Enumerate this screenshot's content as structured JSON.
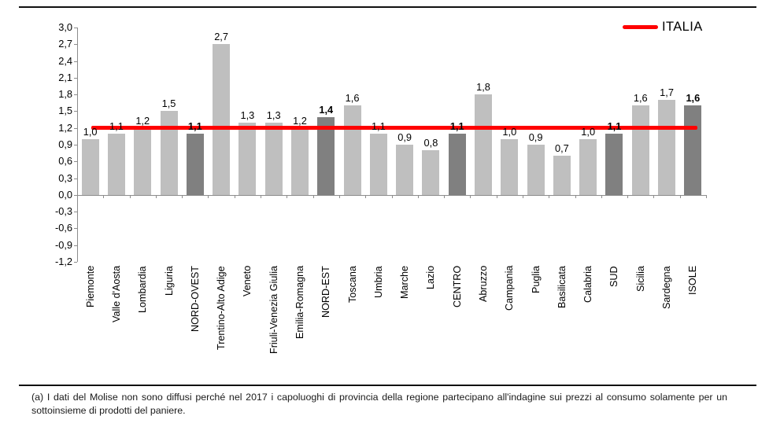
{
  "chart": {
    "legend_label": "ITALIA"
  },
  "footnote": "(a) I dati del Molise non sono diffusi perché nel 2017 i capoluoghi di provincia della regione partecipano all'indagine sui prezzi al consumo solamente per un sottoinsieme di prodotti del paniere.",
  "chart_data": {
    "type": "bar",
    "categories": [
      "Piemonte",
      "Valle d'Aosta",
      "Lombardia",
      "Liguria",
      "NORD-OVEST",
      "Trentino-Alto Adige",
      "Veneto",
      "Friuli-Venezia Giulia",
      "Emilia-Romagna",
      "NORD-EST",
      "Toscana",
      "Umbria",
      "Marche",
      "Lazio",
      "CENTRO",
      "Abruzzo",
      "Campania",
      "Puglia",
      "Basilicata",
      "Calabria",
      "SUD",
      "Sicilia",
      "Sardegna",
      "ISOLE"
    ],
    "values": [
      1.0,
      1.1,
      1.2,
      1.5,
      1.1,
      2.7,
      1.3,
      1.3,
      1.2,
      1.4,
      1.6,
      1.1,
      0.9,
      0.8,
      1.1,
      1.8,
      1.0,
      0.9,
      0.7,
      1.0,
      1.1,
      1.6,
      1.7,
      1.6
    ],
    "emphasized_categories": [
      "NORD-OVEST",
      "NORD-EST",
      "CENTRO",
      "SUD",
      "ISOLE"
    ],
    "reference_line": {
      "name": "ITALIA",
      "value": 1.2,
      "color": "#ff0000"
    },
    "ylim": [
      -1.2,
      3.0
    ],
    "ytick_step": 0.3,
    "ytick_labels": [
      "3,0",
      "2,7",
      "2,4",
      "2,1",
      "1,8",
      "1,5",
      "1,2",
      "0,9",
      "0,6",
      "0,3",
      "0,0",
      "-0,3",
      "-0,6",
      "-0,9",
      "-1,2"
    ],
    "decimal_separator": ",",
    "bar_color": "#bfbfbf",
    "emphasis_bar_color": "#808080",
    "legend_position": "top-right",
    "grid": false
  }
}
